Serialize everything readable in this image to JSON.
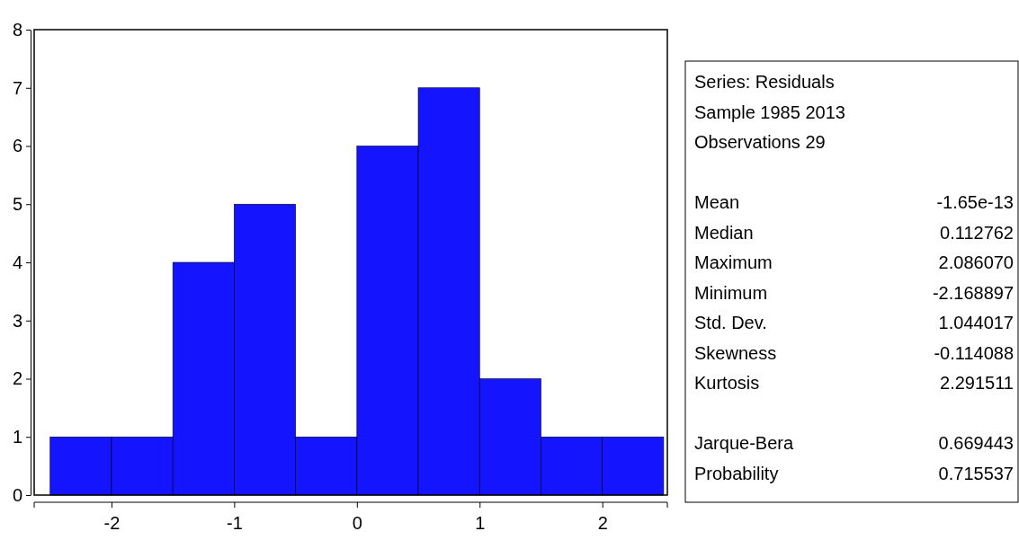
{
  "chart_data": [
    {
      "type": "histogram",
      "bins": [
        -2.5,
        -2.0,
        -1.5,
        -1.0,
        -0.5,
        0,
        0.5,
        1.0,
        1.5,
        2.0,
        2.5
      ],
      "values": [
        1,
        1,
        4,
        5,
        1,
        6,
        7,
        2,
        1,
        1
      ],
      "color": "#1414ff",
      "xlim": [
        -2.63,
        2.53
      ],
      "xticks": [
        -2,
        -1,
        0,
        1,
        2
      ],
      "ylim": [
        0,
        8
      ],
      "yticks": [
        0,
        1,
        2,
        3,
        4,
        5,
        6,
        7,
        8
      ],
      "grid": false
    },
    {
      "type": "other",
      "annotations": [
        "Series: Residuals",
        "Sample 1985 2013",
        "Observations 29",
        "Mean",
        "-1.65e-13",
        "Median",
        "0.112762",
        "Maximum",
        "2.086070",
        "Minimum",
        "-2.168897",
        "Std. Dev.",
        "1.044017",
        "Skewness",
        "-0.114088",
        "Kurtosis",
        "2.291511",
        "Jarque-Bera",
        "0.669443",
        "Probability",
        "0.715537"
      ]
    }
  ]
}
